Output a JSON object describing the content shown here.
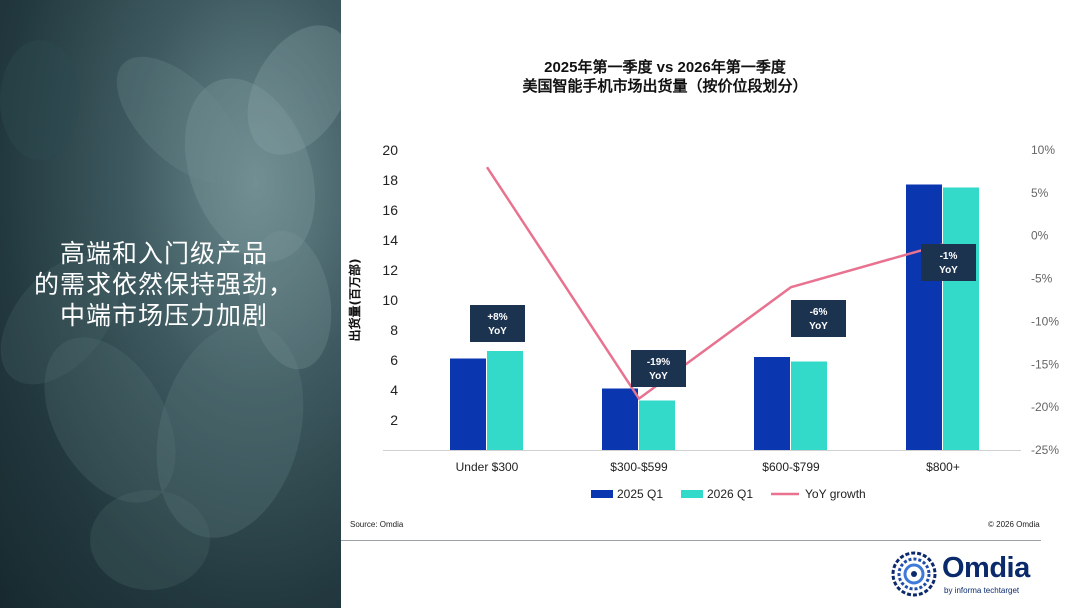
{
  "headline": {
    "lines": [
      "高端和入门级产品",
      "的需求依然保持强劲，",
      "中端市场压力加剧"
    ]
  },
  "chart_data": {
    "type": "bar",
    "title": [
      "2025年第一季度 vs 2026年第一季度",
      "美国智能手机市场出货量（按价位段划分）"
    ],
    "categories": [
      "Under $300",
      "$300-$599",
      "$600-$799",
      "$800+"
    ],
    "series": [
      {
        "name": "2025 Q1",
        "type": "bar",
        "axis": "left",
        "color": "#0a36b0",
        "values": [
          6.1,
          4.1,
          6.2,
          17.7
        ]
      },
      {
        "name": "2026 Q1",
        "type": "bar",
        "axis": "left",
        "color": "#33d9c9",
        "values": [
          6.6,
          3.3,
          5.9,
          17.5
        ]
      },
      {
        "name": "YoY growth",
        "type": "line",
        "axis": "right",
        "color": "#e8728f",
        "values": [
          8,
          -19,
          -6,
          -1
        ]
      }
    ],
    "ylabel": "出货量(百万部)",
    "ylim": [
      0,
      20
    ],
    "yticks": [
      "2",
      "4",
      "6",
      "8",
      "10",
      "12",
      "14",
      "16",
      "18",
      "20"
    ],
    "y2lim": [
      -25,
      10
    ],
    "y2ticks": [
      "-25%",
      "-20%",
      "-15%",
      "-10%",
      "-5%",
      "0%",
      "5%",
      "10%"
    ],
    "annotations": [
      {
        "line1": "+8%",
        "line2": "YoY"
      },
      {
        "line1": "-19%",
        "line2": "YoY"
      },
      {
        "line1": "-6%",
        "line2": "YoY"
      },
      {
        "line1": "-1%",
        "line2": "YoY"
      }
    ],
    "annotation_color": "#1c3350",
    "legend": "bottom"
  },
  "footer": {
    "source": "Source: Omdia",
    "copyright": "© 2026 Omdia"
  },
  "logo": {
    "name": "Omdia",
    "tagline": "by informa techtarget"
  }
}
